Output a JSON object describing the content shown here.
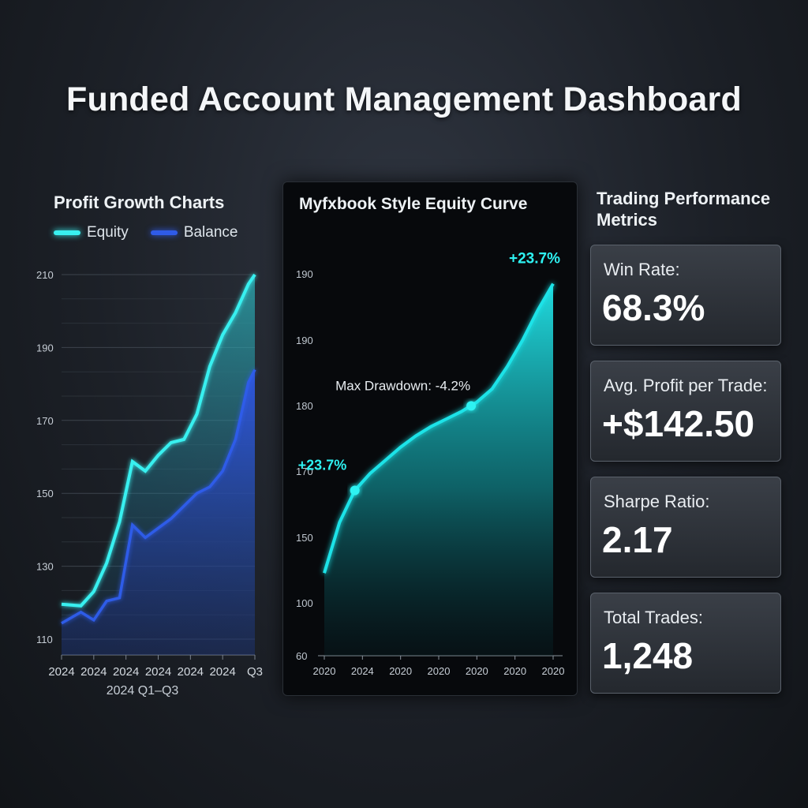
{
  "page": {
    "title": "Funded Account Management Dashboard"
  },
  "profit_panel": {
    "heading": "Profit Growth Charts",
    "legend": [
      {
        "label": "Equity",
        "color": "#39f0f0"
      },
      {
        "label": "Balance",
        "color": "#2f5be8"
      }
    ]
  },
  "equity_panel": {
    "heading": "Myfxbook Style Equity Curve",
    "color": "#1fe3e8"
  },
  "metrics_panel": {
    "heading": "Trading Performance Metrics",
    "cards": [
      {
        "label": "Win Rate:",
        "value": "68.3%"
      },
      {
        "label": "Avg. Profit per Trade:",
        "value": "+$142.50"
      },
      {
        "label": "Sharpe Ratio:",
        "value": "2.17"
      },
      {
        "label": "Total Trades:",
        "value": "1,248"
      }
    ]
  },
  "chart_data": [
    {
      "type": "area",
      "title": "Profit Growth Charts",
      "xlabel": "2024 Q1–Q3",
      "ylabel": "",
      "x_tick_labels": [
        "2024",
        "2024",
        "2024",
        "2024",
        "2024",
        "2024",
        "Q3"
      ],
      "y_tick_labels": [
        "110",
        "130",
        "150",
        "170",
        "190",
        "210"
      ],
      "ylim": [
        100,
        220
      ],
      "x": [
        0,
        0.6,
        1,
        1.4,
        1.8,
        2.2,
        2.6,
        3.0,
        3.4,
        3.8,
        4.2,
        4.6,
        5.0,
        5.4,
        5.8,
        6.0
      ],
      "series": [
        {
          "name": "Equity",
          "color": "#39f0f0",
          "values": [
            116,
            115.5,
            120,
            129,
            142,
            161,
            158,
            163,
            167,
            168,
            176,
            191,
            201,
            208,
            217,
            220
          ]
        },
        {
          "name": "Balance",
          "color": "#2f5be8",
          "values": [
            110,
            113.5,
            111,
            117,
            118,
            141,
            137,
            140,
            143,
            147,
            151,
            153,
            158,
            168,
            186,
            190
          ]
        }
      ],
      "grid": true,
      "legend": "top-left"
    },
    {
      "type": "area",
      "title": "Myfxbook Style Equity Curve",
      "x_tick_labels": [
        "2020",
        "2024",
        "2020",
        "2020",
        "2020",
        "2020",
        "2020"
      ],
      "y_tick_labels": [
        "60",
        "100",
        "150",
        "170",
        "180",
        "190",
        "190"
      ],
      "x": [
        0,
        0.4,
        0.8,
        1.2,
        1.6,
        2.0,
        2.4,
        2.8,
        3.2,
        3.6,
        4.0,
        4.4,
        4.8,
        5.2,
        5.6,
        6.0
      ],
      "series": [
        {
          "name": "",
          "color": "#1fe3e8",
          "values": [
            104,
            131,
            148,
            157,
            164,
            171,
            177,
            182,
            186,
            190,
            195,
            202,
            214,
            228,
            244,
            258
          ]
        }
      ],
      "ylim": [
        60,
        270
      ],
      "annotations": [
        {
          "text": "+23.7%",
          "x": 0.8,
          "y": 148,
          "marker": true
        },
        {
          "text": "Max Drawdown: -4.2%",
          "x": 3.85,
          "y": 193,
          "marker": true
        },
        {
          "text": "+23.7%",
          "x": 6.0,
          "y": 258,
          "marker": false
        }
      ],
      "grid": false
    }
  ]
}
